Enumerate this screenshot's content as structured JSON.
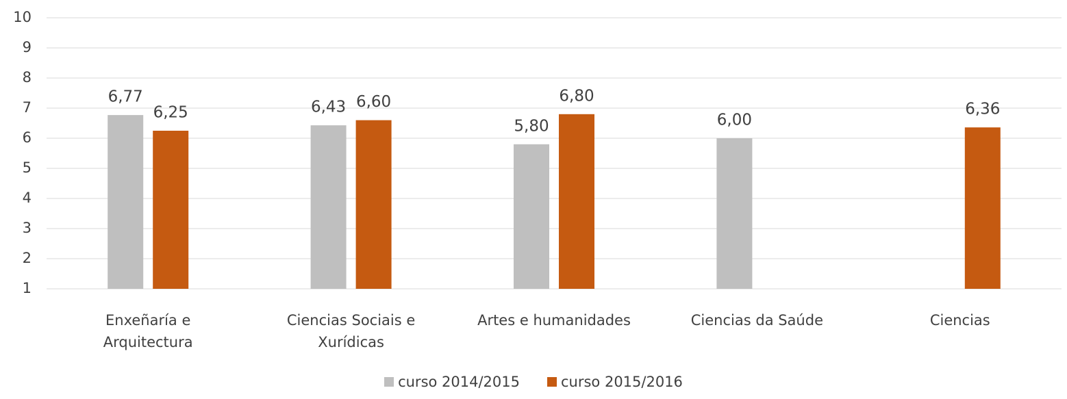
{
  "chart_data": {
    "type": "bar",
    "categories": [
      "Enxeñaría e Arquitectura",
      "Ciencias Sociais e Xurídicas",
      "Artes e humanidades",
      "Ciencias da Saúde",
      "Ciencias"
    ],
    "series": [
      {
        "name": "curso 2014/2015",
        "color": "#bfbfbf",
        "values": [
          6.77,
          6.43,
          5.8,
          6.0,
          null
        ],
        "value_labels": [
          "6,77",
          "6,43",
          "5,80",
          "6,00",
          null
        ]
      },
      {
        "name": "curso 2015/2016",
        "color": "#c55a11",
        "values": [
          6.25,
          6.6,
          6.8,
          null,
          6.36
        ],
        "value_labels": [
          "6,25",
          "6,60",
          "6,80",
          null,
          "6,36"
        ]
      }
    ],
    "ylim": [
      1,
      10
    ],
    "yticks": [
      1,
      2,
      3,
      4,
      5,
      6,
      7,
      8,
      9,
      10
    ],
    "grid": true,
    "legend": "bottom"
  }
}
